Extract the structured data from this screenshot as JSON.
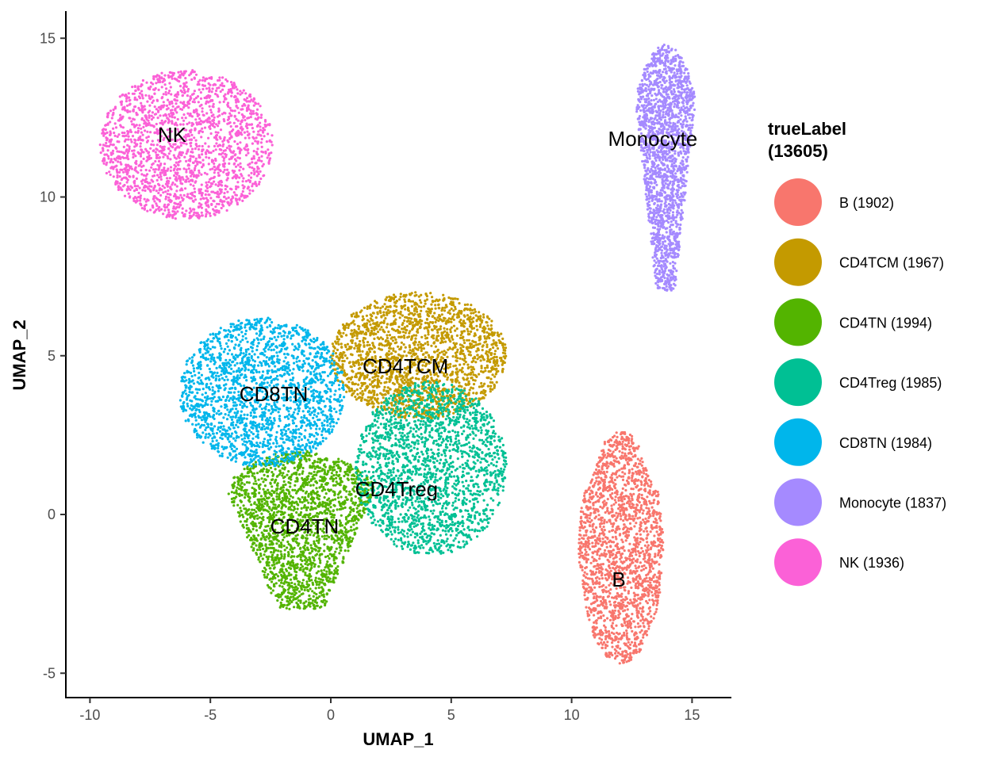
{
  "chart_data": {
    "type": "scatter",
    "title": "",
    "xlabel": "UMAP_1",
    "ylabel": "UMAP_2",
    "xlim": [
      -11,
      16.6
    ],
    "ylim": [
      -5.77,
      15.8
    ],
    "xticks": [
      -10,
      -5,
      0,
      5,
      10,
      15
    ],
    "yticks": [
      -5,
      0,
      5,
      10,
      15
    ],
    "grid": false,
    "legend": {
      "position": "right",
      "title_line1": "trueLabel",
      "title_line2": "(13605)"
    },
    "clusters": [
      {
        "name": "B",
        "legend_label": "B (1902)",
        "count": 1902,
        "color": "#F8766D",
        "label_pos": [
          11.96,
          -2.05
        ],
        "x_range": [
          10.3,
          13.8
        ],
        "y_range": [
          -4.7,
          2.6
        ],
        "shape": "taper-up"
      },
      {
        "name": "CD4TCM",
        "legend_label": "CD4TCM (1967)",
        "count": 1967,
        "color": "#C49A00",
        "label_pos": [
          3.1,
          4.67
        ],
        "x_range": [
          0.0,
          7.3
        ],
        "y_range": [
          3.0,
          7.0
        ],
        "shape": "ellipse"
      },
      {
        "name": "CD4TN",
        "legend_label": "CD4TN (1994)",
        "count": 1994,
        "color": "#53B400",
        "label_pos": [
          -1.09,
          -0.37
        ],
        "x_range": [
          -5.0,
          2.5
        ],
        "y_range": [
          -3.0,
          2.0
        ],
        "shape": "taper-down"
      },
      {
        "name": "CD4Treg",
        "legend_label": "CD4Treg (1985)",
        "count": 1985,
        "color": "#00C094",
        "label_pos": [
          2.73,
          0.8
        ],
        "x_range": [
          1.0,
          7.3
        ],
        "y_range": [
          -1.3,
          4.2
        ],
        "shape": "ellipse"
      },
      {
        "name": "CD8TN",
        "legend_label": "CD8TN (1984)",
        "count": 1984,
        "color": "#00B6EB",
        "label_pos": [
          -2.37,
          3.8
        ],
        "x_range": [
          -6.3,
          0.6
        ],
        "y_range": [
          1.5,
          6.2
        ],
        "shape": "ellipse"
      },
      {
        "name": "Monocyte",
        "legend_label": "Monocyte (1837)",
        "count": 1837,
        "color": "#A58AFF",
        "label_pos": [
          13.37,
          11.84
        ],
        "x_range": [
          12.4,
          15.4
        ],
        "y_range": [
          7.0,
          14.8
        ],
        "shape": "taper-down"
      },
      {
        "name": "NK",
        "legend_label": "NK (1936)",
        "count": 1936,
        "color": "#FB61D7",
        "label_pos": [
          -6.59,
          11.96
        ],
        "x_range": [
          -9.6,
          -2.4
        ],
        "y_range": [
          9.3,
          14.0
        ],
        "shape": "ellipse"
      }
    ]
  }
}
